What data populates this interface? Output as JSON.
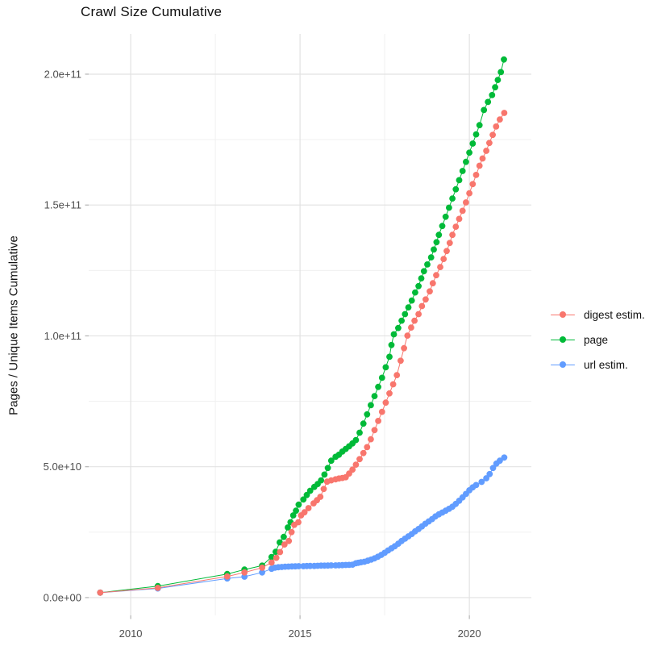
{
  "chart_data": {
    "type": "line",
    "title": "Crawl Size Cumulative",
    "xlabel": "",
    "ylabel": "Pages / Unique Items Cumulative",
    "values_unit": "1e9 (y values below are billions of pages / unique items)",
    "xlim": [
      2008.76,
      2021.83
    ],
    "ylim": [
      -6.8,
      215.4
    ],
    "grid": "major and minor, light gray on white, no panel border",
    "x_ticks": [
      {
        "v": 2010,
        "label": "2010"
      },
      {
        "v": 2015,
        "label": "2015"
      },
      {
        "v": 2020,
        "label": "2020"
      }
    ],
    "x_minor_ticks": [
      2012.5,
      2017.5
    ],
    "y_ticks": [
      {
        "v": 0,
        "label": "0.0e+00"
      },
      {
        "v": 50,
        "label": "5.0e+10"
      },
      {
        "v": 100,
        "label": "1.0e+11"
      },
      {
        "v": 150,
        "label": "1.5e+11"
      },
      {
        "v": 200,
        "label": "2.0e+11"
      }
    ],
    "y_minor_ticks": [
      25,
      75,
      125,
      175
    ],
    "legend": {
      "position": "right",
      "items": [
        {
          "label": "digest estim.",
          "color": "#F8766D"
        },
        {
          "label": "page",
          "color": "#00BA38"
        },
        {
          "label": "url estim.",
          "color": "#619CFF"
        }
      ]
    },
    "draw_order": [
      "page",
      "url estim.",
      "digest estim."
    ],
    "series": [
      {
        "name": "page",
        "color": "#00BA38",
        "points": [
          [
            2009.1,
            1.9
          ],
          [
            2010.8,
            4.4
          ],
          [
            2012.85,
            9.0
          ],
          [
            2013.36,
            10.7
          ],
          [
            2013.88,
            12.2
          ],
          [
            2014.16,
            15.5
          ],
          [
            2014.28,
            17.5
          ],
          [
            2014.4,
            21.1
          ],
          [
            2014.52,
            23.2
          ],
          [
            2014.64,
            26.8
          ],
          [
            2014.72,
            28.8
          ],
          [
            2014.8,
            31.4
          ],
          [
            2014.88,
            33.2
          ],
          [
            2014.96,
            35.5
          ],
          [
            2015.1,
            37.5
          ],
          [
            2015.2,
            39.2
          ],
          [
            2015.3,
            40.8
          ],
          [
            2015.42,
            42.3
          ],
          [
            2015.52,
            43.4
          ],
          [
            2015.62,
            44.8
          ],
          [
            2015.72,
            47.0
          ],
          [
            2015.82,
            49.5
          ],
          [
            2015.92,
            52.3
          ],
          [
            2016.05,
            53.8
          ],
          [
            2016.15,
            54.6
          ],
          [
            2016.25,
            55.8
          ],
          [
            2016.35,
            56.8
          ],
          [
            2016.45,
            57.8
          ],
          [
            2016.55,
            58.9
          ],
          [
            2016.65,
            60.2
          ],
          [
            2016.76,
            63.0
          ],
          [
            2016.87,
            66.5
          ],
          [
            2016.98,
            70.0
          ],
          [
            2017.09,
            73.5
          ],
          [
            2017.2,
            77.0
          ],
          [
            2017.31,
            80.5
          ],
          [
            2017.42,
            84.0
          ],
          [
            2017.53,
            88.0
          ],
          [
            2017.64,
            92.0
          ],
          [
            2017.7,
            96.5
          ],
          [
            2017.77,
            100.6
          ],
          [
            2017.9,
            103.0
          ],
          [
            2018.0,
            105.8
          ],
          [
            2018.1,
            108.3
          ],
          [
            2018.2,
            110.9
          ],
          [
            2018.3,
            113.5
          ],
          [
            2018.4,
            116.6
          ],
          [
            2018.5,
            119.0
          ],
          [
            2018.58,
            122.0
          ],
          [
            2018.66,
            124.7
          ],
          [
            2018.76,
            127.3
          ],
          [
            2018.87,
            130.0
          ],
          [
            2018.95,
            133.0
          ],
          [
            2019.03,
            135.8
          ],
          [
            2019.1,
            138.6
          ],
          [
            2019.2,
            142.0
          ],
          [
            2019.3,
            145.5
          ],
          [
            2019.4,
            149.0
          ],
          [
            2019.5,
            152.5
          ],
          [
            2019.6,
            156.0
          ],
          [
            2019.7,
            159.5
          ],
          [
            2019.8,
            163.0
          ],
          [
            2019.9,
            166.5
          ],
          [
            2020.0,
            170.0
          ],
          [
            2020.1,
            173.5
          ],
          [
            2020.2,
            177.0
          ],
          [
            2020.3,
            180.5
          ],
          [
            2020.43,
            186.3
          ],
          [
            2020.55,
            189.4
          ],
          [
            2020.67,
            192.0
          ],
          [
            2020.76,
            195.0
          ],
          [
            2020.84,
            197.8
          ],
          [
            2020.93,
            200.8
          ],
          [
            2021.02,
            205.6
          ]
        ]
      },
      {
        "name": "url estim.",
        "color": "#619CFF",
        "points": [
          [
            2009.1,
            1.9
          ],
          [
            2010.8,
            3.5
          ],
          [
            2012.85,
            7.3
          ],
          [
            2013.36,
            8.0
          ],
          [
            2013.88,
            9.6
          ],
          [
            2014.16,
            11.0
          ],
          [
            2014.26,
            11.4
          ],
          [
            2014.36,
            11.6
          ],
          [
            2014.46,
            11.7
          ],
          [
            2014.56,
            11.8
          ],
          [
            2014.66,
            11.85
          ],
          [
            2014.76,
            11.9
          ],
          [
            2014.86,
            11.95
          ],
          [
            2014.96,
            12.0
          ],
          [
            2015.1,
            12.0
          ],
          [
            2015.2,
            12.05
          ],
          [
            2015.3,
            12.1
          ],
          [
            2015.42,
            12.1
          ],
          [
            2015.52,
            12.15
          ],
          [
            2015.62,
            12.2
          ],
          [
            2015.72,
            12.2
          ],
          [
            2015.82,
            12.25
          ],
          [
            2015.92,
            12.3
          ],
          [
            2016.05,
            12.3
          ],
          [
            2016.15,
            12.35
          ],
          [
            2016.25,
            12.4
          ],
          [
            2016.35,
            12.45
          ],
          [
            2016.45,
            12.5
          ],
          [
            2016.55,
            12.6
          ],
          [
            2016.65,
            13.1
          ],
          [
            2016.72,
            13.3
          ],
          [
            2016.8,
            13.5
          ],
          [
            2016.9,
            13.7
          ],
          [
            2017.0,
            14.1
          ],
          [
            2017.1,
            14.5
          ],
          [
            2017.2,
            15.0
          ],
          [
            2017.3,
            15.6
          ],
          [
            2017.4,
            16.3
          ],
          [
            2017.5,
            17.1
          ],
          [
            2017.6,
            18.0
          ],
          [
            2017.7,
            18.8
          ],
          [
            2017.8,
            19.6
          ],
          [
            2017.9,
            20.6
          ],
          [
            2018.0,
            21.6
          ],
          [
            2018.1,
            22.5
          ],
          [
            2018.2,
            23.4
          ],
          [
            2018.3,
            24.3
          ],
          [
            2018.4,
            25.3
          ],
          [
            2018.5,
            26.2
          ],
          [
            2018.6,
            27.2
          ],
          [
            2018.7,
            28.2
          ],
          [
            2018.8,
            29.1
          ],
          [
            2018.9,
            30.0
          ],
          [
            2019.0,
            31.0
          ],
          [
            2019.1,
            31.8
          ],
          [
            2019.2,
            32.5
          ],
          [
            2019.3,
            33.2
          ],
          [
            2019.4,
            33.9
          ],
          [
            2019.5,
            34.7
          ],
          [
            2019.6,
            35.8
          ],
          [
            2019.7,
            37.0
          ],
          [
            2019.8,
            38.3
          ],
          [
            2019.9,
            39.6
          ],
          [
            2020.0,
            41.0
          ],
          [
            2020.1,
            42.1
          ],
          [
            2020.2,
            43.0
          ],
          [
            2020.36,
            44.2
          ],
          [
            2020.5,
            45.6
          ],
          [
            2020.6,
            47.2
          ],
          [
            2020.7,
            49.5
          ],
          [
            2020.8,
            51.2
          ],
          [
            2020.9,
            52.3
          ],
          [
            2021.03,
            53.5
          ]
        ]
      },
      {
        "name": "digest estim.",
        "color": "#F8766D",
        "points": [
          [
            2009.1,
            1.9
          ],
          [
            2010.8,
            3.7
          ],
          [
            2012.85,
            8.1
          ],
          [
            2013.36,
            9.6
          ],
          [
            2013.88,
            11.4
          ],
          [
            2014.16,
            13.4
          ],
          [
            2014.3,
            15.2
          ],
          [
            2014.41,
            17.4
          ],
          [
            2014.54,
            20.3
          ],
          [
            2014.67,
            21.6
          ],
          [
            2014.75,
            25.0
          ],
          [
            2014.83,
            27.8
          ],
          [
            2014.95,
            28.8
          ],
          [
            2015.03,
            31.4
          ],
          [
            2015.13,
            32.6
          ],
          [
            2015.25,
            34.2
          ],
          [
            2015.4,
            36.0
          ],
          [
            2015.5,
            37.2
          ],
          [
            2015.6,
            38.5
          ],
          [
            2015.7,
            41.5
          ],
          [
            2015.8,
            44.3
          ],
          [
            2015.92,
            44.8
          ],
          [
            2016.05,
            45.2
          ],
          [
            2016.15,
            45.5
          ],
          [
            2016.25,
            45.7
          ],
          [
            2016.35,
            46.0
          ],
          [
            2016.45,
            47.4
          ],
          [
            2016.55,
            48.9
          ],
          [
            2016.65,
            50.8
          ],
          [
            2016.76,
            52.9
          ],
          [
            2016.87,
            55.2
          ],
          [
            2016.98,
            57.5
          ],
          [
            2017.09,
            60.5
          ],
          [
            2017.2,
            64.0
          ],
          [
            2017.31,
            67.5
          ],
          [
            2017.42,
            71.0
          ],
          [
            2017.53,
            74.5
          ],
          [
            2017.64,
            78.0
          ],
          [
            2017.75,
            81.5
          ],
          [
            2017.86,
            85.0
          ],
          [
            2017.97,
            90.5
          ],
          [
            2018.07,
            95.3
          ],
          [
            2018.17,
            100.1
          ],
          [
            2018.28,
            103.2
          ],
          [
            2018.38,
            105.8
          ],
          [
            2018.5,
            108.3
          ],
          [
            2018.6,
            111.4
          ],
          [
            2018.71,
            113.9
          ],
          [
            2018.83,
            117.0
          ],
          [
            2018.92,
            120.1
          ],
          [
            2019.02,
            123.2
          ],
          [
            2019.14,
            126.3
          ],
          [
            2019.24,
            129.4
          ],
          [
            2019.33,
            132.4
          ],
          [
            2019.42,
            135.5
          ],
          [
            2019.5,
            138.6
          ],
          [
            2019.6,
            141.7
          ],
          [
            2019.7,
            144.7
          ],
          [
            2019.8,
            147.8
          ],
          [
            2019.9,
            151.0
          ],
          [
            2020.0,
            154.5
          ],
          [
            2020.1,
            158.0
          ],
          [
            2020.2,
            161.5
          ],
          [
            2020.3,
            165.0
          ],
          [
            2020.39,
            167.8
          ],
          [
            2020.5,
            170.7
          ],
          [
            2020.59,
            173.7
          ],
          [
            2020.69,
            176.8
          ],
          [
            2020.79,
            180.0
          ],
          [
            2020.9,
            182.7
          ],
          [
            2021.03,
            185.2
          ]
        ]
      }
    ]
  }
}
